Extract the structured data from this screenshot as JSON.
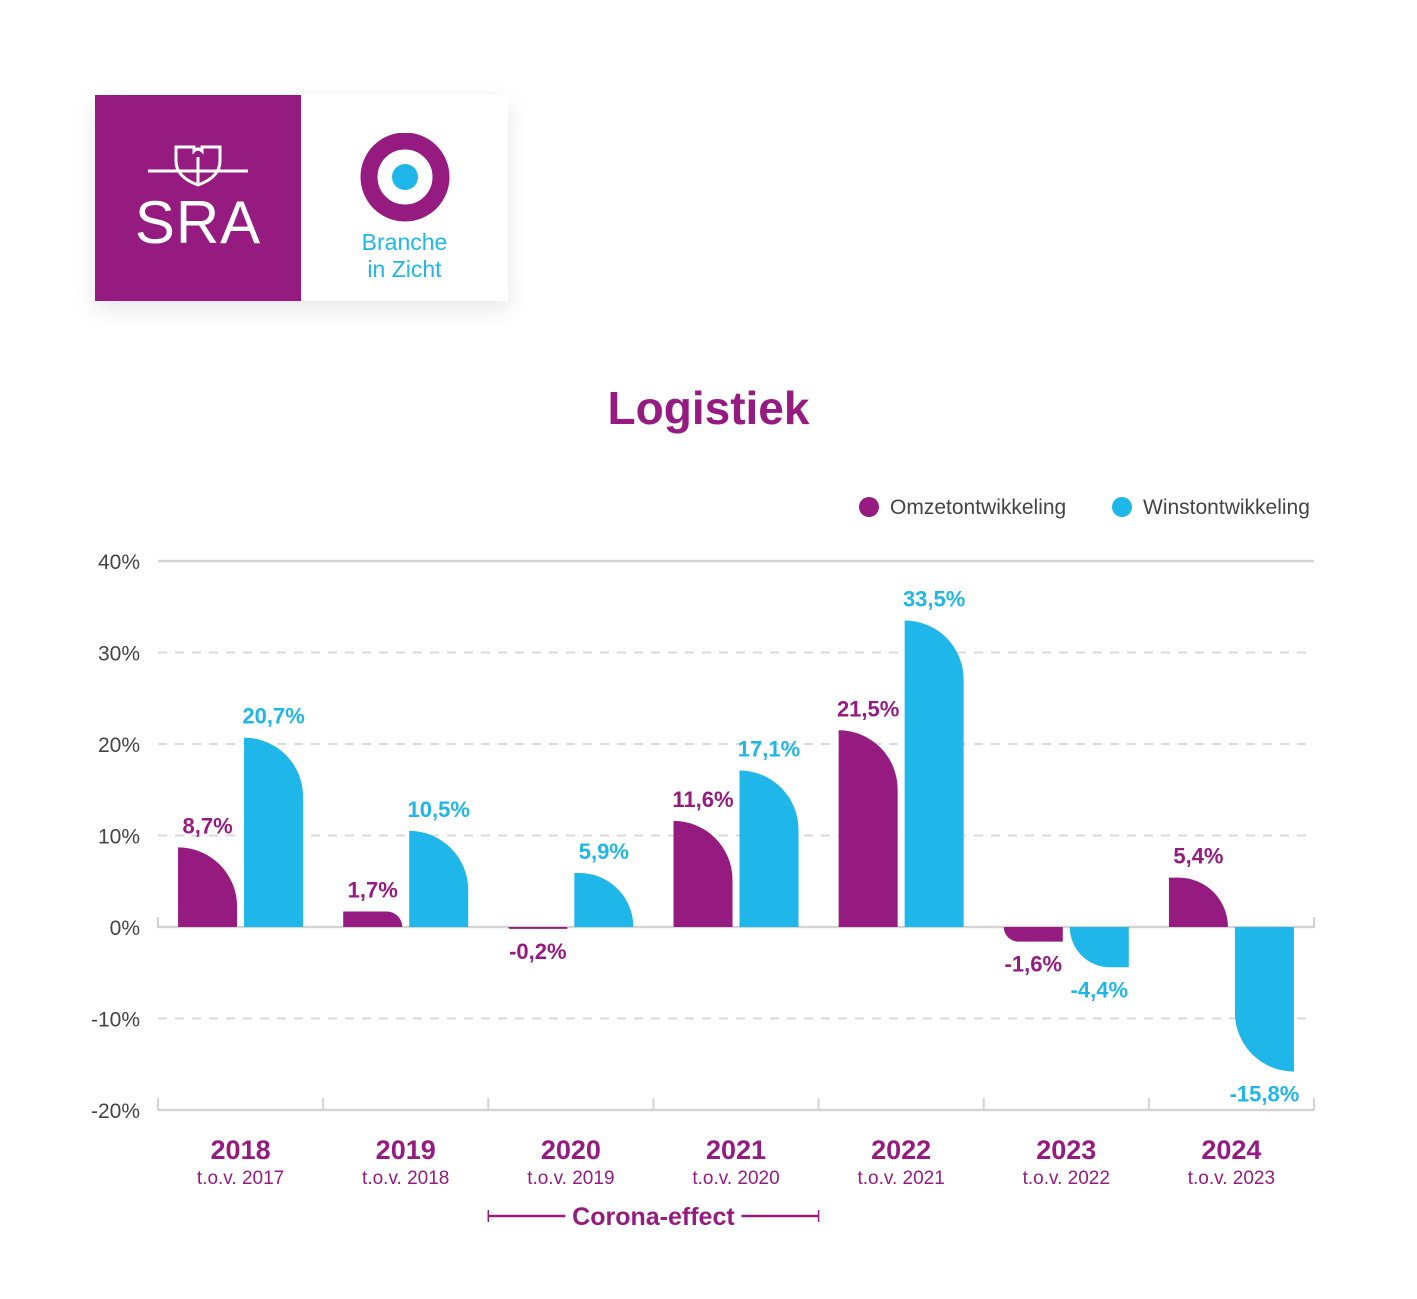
{
  "logo": {
    "sra_text": "SRA",
    "branche_line1": "Branche",
    "branche_line2": "in Zicht"
  },
  "chart_data": {
    "type": "bar",
    "title": "Logistiek",
    "categories": [
      "2018",
      "2019",
      "2020",
      "2021",
      "2022",
      "2023",
      "2024"
    ],
    "category_sublabels": [
      "t.o.v. 2017",
      "t.o.v. 2018",
      "t.o.v. 2019",
      "t.o.v. 2020",
      "t.o.v. 2021",
      "t.o.v. 2022",
      "t.o.v. 2023"
    ],
    "series": [
      {
        "name": "Omzetontwikkeling",
        "color": "#951b81",
        "values": [
          8.7,
          1.7,
          -0.2,
          11.6,
          21.5,
          -1.6,
          5.4
        ],
        "labels": [
          "8,7%",
          "1,7%",
          "-0,2%",
          "11,6%",
          "21,5%",
          "-1,6%",
          "5,4%"
        ]
      },
      {
        "name": "Winstontwikkeling",
        "color": "#1fb6e9",
        "values": [
          20.7,
          10.5,
          5.9,
          17.1,
          33.5,
          -4.4,
          -15.8
        ],
        "labels": [
          "20,7%",
          "10,5%",
          "5,9%",
          "17,1%",
          "33,5%",
          "-4,4%",
          "-15,8%"
        ]
      }
    ],
    "ylim": [
      -20,
      40
    ],
    "yticks": [
      40,
      30,
      20,
      10,
      0,
      -10,
      -20
    ],
    "ytick_labels": [
      "40%",
      "30%",
      "20%",
      "10%",
      "0%",
      "-10%",
      "-20%"
    ],
    "grid": true,
    "legend_position": "top-right",
    "annotation": {
      "text": "Corona-effect",
      "from_category": "2020",
      "to_category": "2021"
    }
  }
}
